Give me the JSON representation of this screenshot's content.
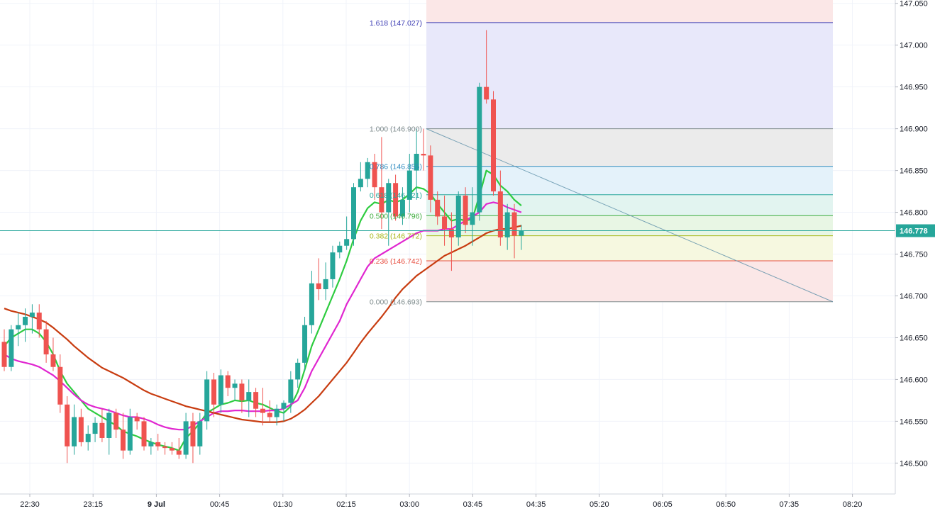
{
  "chart_data": {
    "type": "candlestick",
    "price_axis": {
      "labels": [
        "147.050",
        "147.000",
        "146.950",
        "146.900",
        "146.850",
        "146.800",
        "146.750",
        "146.700",
        "146.650",
        "146.600",
        "146.550",
        "146.500"
      ],
      "ylim": [
        146.463,
        147.054
      ]
    },
    "time_axis": {
      "labels": [
        "22:30",
        "23:15",
        "9 Jul",
        "00:45",
        "01:30",
        "02:15",
        "03:00",
        "03:45",
        "04:35",
        "05:20",
        "06:05",
        "06:50",
        "07:35",
        "08:20"
      ]
    },
    "current_price": {
      "label": "146.778",
      "value": 146.778,
      "color": "#26a69a"
    },
    "fibonacci": {
      "levels": [
        {
          "label": "1.618 (147.027)",
          "ratio": 1.618,
          "price": 147.027,
          "color": "#3b3bb3",
          "zone": "#e8e8fa"
        },
        {
          "label": "1.000 (146.900)",
          "ratio": 1.0,
          "price": 146.9,
          "color": "#7f8c8d",
          "zone": "#ebebeb"
        },
        {
          "label": "0.786 (146.855)",
          "ratio": 0.786,
          "price": 146.855,
          "color": "#2e8bc0",
          "zone": "#e4f2fa"
        },
        {
          "label": "0.618 (146.821)",
          "ratio": 0.618,
          "price": 146.821,
          "color": "#26a69a",
          "zone": "#e2f4f0"
        },
        {
          "label": "0.500 (146.796)",
          "ratio": 0.5,
          "price": 146.796,
          "color": "#3cab3c",
          "zone": "#e8f6e4"
        },
        {
          "label": "0.382 (146.772)",
          "ratio": 0.382,
          "price": 146.772,
          "color": "#a8b81a",
          "zone": "#f6f8e0"
        },
        {
          "label": "0.236 (146.742)",
          "ratio": 0.236,
          "price": 146.742,
          "color": "#e84e40",
          "zone": "#fbe7e7"
        },
        {
          "label": "0.000 (146.693)",
          "ratio": 0.0,
          "price": 146.693,
          "color": "#7f8c8d",
          "zone": null
        }
      ],
      "top_zone_color": "#fbe7e7",
      "trendline": {
        "from_price": 146.9,
        "to_price": 146.693,
        "color": "#5b8fa8"
      }
    },
    "candles": [
      [
        146.645,
        146.66,
        146.61,
        146.615
      ],
      [
        146.615,
        146.665,
        146.61,
        146.66
      ],
      [
        146.66,
        146.68,
        146.64,
        146.665
      ],
      [
        146.665,
        146.685,
        146.645,
        146.675
      ],
      [
        146.675,
        146.69,
        146.655,
        146.68
      ],
      [
        146.68,
        146.69,
        146.65,
        146.66
      ],
      [
        146.66,
        146.67,
        146.62,
        146.63
      ],
      [
        146.63,
        146.65,
        146.61,
        146.615
      ],
      [
        146.615,
        146.63,
        146.56,
        146.57
      ],
      [
        146.57,
        146.58,
        146.5,
        146.52
      ],
      [
        146.52,
        146.57,
        146.51,
        146.555
      ],
      [
        146.555,
        146.565,
        146.52,
        146.525
      ],
      [
        146.525,
        146.545,
        146.515,
        146.535
      ],
      [
        146.535,
        146.555,
        146.525,
        146.548
      ],
      [
        146.548,
        146.565,
        146.525,
        146.53
      ],
      [
        146.53,
        146.565,
        146.51,
        146.56
      ],
      [
        146.56,
        146.565,
        146.53,
        146.54
      ],
      [
        146.54,
        146.56,
        146.505,
        146.515
      ],
      [
        146.515,
        146.565,
        146.51,
        146.555
      ],
      [
        146.555,
        146.56,
        146.54,
        146.55
      ],
      [
        146.55,
        146.555,
        146.515,
        146.52
      ],
      [
        146.52,
        146.53,
        146.51,
        146.525
      ],
      [
        146.525,
        146.535,
        146.515,
        146.52
      ],
      [
        146.52,
        146.525,
        146.51,
        146.518
      ],
      [
        146.518,
        146.525,
        146.51,
        146.515
      ],
      [
        146.515,
        146.53,
        146.505,
        146.51
      ],
      [
        146.51,
        146.56,
        146.505,
        146.55
      ],
      [
        146.55,
        146.56,
        146.5,
        146.52
      ],
      [
        146.52,
        146.56,
        146.51,
        146.55
      ],
      [
        146.55,
        146.61,
        146.54,
        146.6
      ],
      [
        146.6,
        146.608,
        146.555,
        146.57
      ],
      [
        146.57,
        146.612,
        146.56,
        146.605
      ],
      [
        146.605,
        146.61,
        146.58,
        146.59
      ],
      [
        146.59,
        146.6,
        146.575,
        146.595
      ],
      [
        146.595,
        146.6,
        146.56,
        146.575
      ],
      [
        146.575,
        146.6,
        146.555,
        146.585
      ],
      [
        146.585,
        146.59,
        146.555,
        146.565
      ],
      [
        146.565,
        146.59,
        146.545,
        146.56
      ],
      [
        146.56,
        146.575,
        146.55,
        146.555
      ],
      [
        146.555,
        146.57,
        146.545,
        146.565
      ],
      [
        146.565,
        146.575,
        146.55,
        146.572
      ],
      [
        146.572,
        146.61,
        146.56,
        146.6
      ],
      [
        146.6,
        146.625,
        146.59,
        146.62
      ],
      [
        146.62,
        146.675,
        146.61,
        146.665
      ],
      [
        146.665,
        146.73,
        146.655,
        146.715
      ],
      [
        146.715,
        146.745,
        146.695,
        146.708
      ],
      [
        146.708,
        146.74,
        146.695,
        146.72
      ],
      [
        146.72,
        146.76,
        146.71,
        146.752
      ],
      [
        146.752,
        146.765,
        146.745,
        146.76
      ],
      [
        146.76,
        146.795,
        146.755,
        146.768
      ],
      [
        146.768,
        146.835,
        146.76,
        146.83
      ],
      [
        146.83,
        146.86,
        146.825,
        146.84
      ],
      [
        146.84,
        146.865,
        146.83,
        146.86
      ],
      [
        146.86,
        146.87,
        146.815,
        146.83
      ],
      [
        146.83,
        146.89,
        146.78,
        146.8
      ],
      [
        146.8,
        146.84,
        146.76,
        146.835
      ],
      [
        146.835,
        146.845,
        146.79,
        146.795
      ],
      [
        146.795,
        146.83,
        146.785,
        146.815
      ],
      [
        146.815,
        146.87,
        146.8,
        146.85
      ],
      [
        146.85,
        146.9,
        146.815,
        146.87
      ],
      [
        146.87,
        146.9,
        146.85,
        146.868
      ],
      [
        146.868,
        146.88,
        146.8,
        146.815
      ],
      [
        146.815,
        146.825,
        146.785,
        146.795
      ],
      [
        146.795,
        146.82,
        146.76,
        146.78
      ],
      [
        146.78,
        146.8,
        146.73,
        146.77
      ],
      [
        146.77,
        146.825,
        146.76,
        146.82
      ],
      [
        146.82,
        146.83,
        146.775,
        146.785
      ],
      [
        146.785,
        146.83,
        146.76,
        146.8
      ],
      [
        146.8,
        146.955,
        146.79,
        146.95
      ],
      [
        146.95,
        147.018,
        146.93,
        146.935
      ],
      [
        146.935,
        146.945,
        146.82,
        146.825
      ],
      [
        146.825,
        146.85,
        146.76,
        146.77
      ],
      [
        146.77,
        146.81,
        146.755,
        146.8
      ],
      [
        146.8,
        146.81,
        146.745,
        146.772
      ],
      [
        146.772,
        146.785,
        146.755,
        146.778
      ]
    ],
    "series": [
      {
        "name": "",
        "color": "#2ecc40",
        "values": [
          146.64,
          146.65,
          146.655,
          146.66,
          146.66,
          146.655,
          146.645,
          146.63,
          146.61,
          146.595,
          146.585,
          146.575,
          146.565,
          146.56,
          146.555,
          146.55,
          146.545,
          146.538,
          146.535,
          146.532,
          146.528,
          146.525,
          146.522,
          146.52,
          146.518,
          146.515,
          146.53,
          146.538,
          146.548,
          146.56,
          146.565,
          146.57,
          146.572,
          146.575,
          146.574,
          146.575,
          146.572,
          146.57,
          146.566,
          146.562,
          146.56,
          146.568,
          146.585,
          146.612,
          146.64,
          146.66,
          146.68,
          146.7,
          146.72,
          146.742,
          146.768,
          146.79,
          146.805,
          146.812,
          146.81,
          146.815,
          146.812,
          146.815,
          146.822,
          146.83,
          146.828,
          146.822,
          146.81,
          146.8,
          146.79,
          146.792,
          146.79,
          146.792,
          146.82,
          146.85,
          146.845,
          146.832,
          146.825,
          146.815,
          146.808
        ]
      },
      {
        "name": "",
        "color": "#e026d0",
        "values": [
          146.63,
          146.625,
          146.622,
          146.62,
          146.618,
          146.615,
          146.61,
          146.605,
          146.598,
          146.59,
          146.582,
          146.575,
          146.57,
          146.567,
          146.565,
          146.563,
          146.56,
          146.557,
          146.555,
          146.555,
          146.553,
          146.55,
          146.546,
          146.543,
          146.541,
          146.54,
          146.54,
          146.545,
          146.55,
          146.555,
          146.56,
          146.562,
          146.562,
          146.563,
          146.563,
          146.562,
          146.562,
          146.562,
          146.563,
          146.563,
          146.565,
          146.57,
          146.575,
          146.59,
          146.61,
          146.625,
          146.64,
          146.655,
          146.67,
          146.69,
          146.705,
          146.72,
          146.735,
          146.745,
          146.75,
          146.755,
          146.76,
          146.765,
          146.77,
          146.775,
          146.778,
          146.778,
          146.778,
          146.78,
          146.78,
          146.785,
          146.79,
          146.795,
          146.8,
          146.81,
          146.812,
          146.81,
          146.806,
          146.803,
          146.8
        ]
      },
      {
        "name": "",
        "color": "#c83c10",
        "values": [
          146.685,
          146.682,
          146.68,
          146.678,
          146.675,
          146.672,
          146.668,
          146.662,
          146.655,
          146.648,
          146.64,
          146.633,
          146.626,
          146.62,
          146.614,
          146.61,
          146.606,
          146.602,
          146.597,
          146.592,
          146.587,
          146.583,
          146.58,
          146.577,
          146.574,
          146.571,
          146.568,
          146.566,
          146.564,
          146.562,
          146.56,
          146.558,
          146.556,
          146.554,
          146.552,
          146.551,
          146.55,
          146.549,
          146.549,
          146.549,
          146.55,
          146.553,
          146.558,
          146.564,
          146.572,
          146.58,
          146.59,
          146.6,
          146.61,
          146.62,
          146.632,
          146.644,
          146.655,
          146.665,
          146.675,
          146.686,
          146.698,
          146.708,
          146.716,
          146.724,
          146.73,
          146.736,
          146.742,
          146.748,
          146.752,
          146.756,
          146.76,
          146.765,
          146.77,
          146.775,
          146.778,
          146.78,
          146.78,
          146.782,
          146.784
        ]
      }
    ]
  }
}
